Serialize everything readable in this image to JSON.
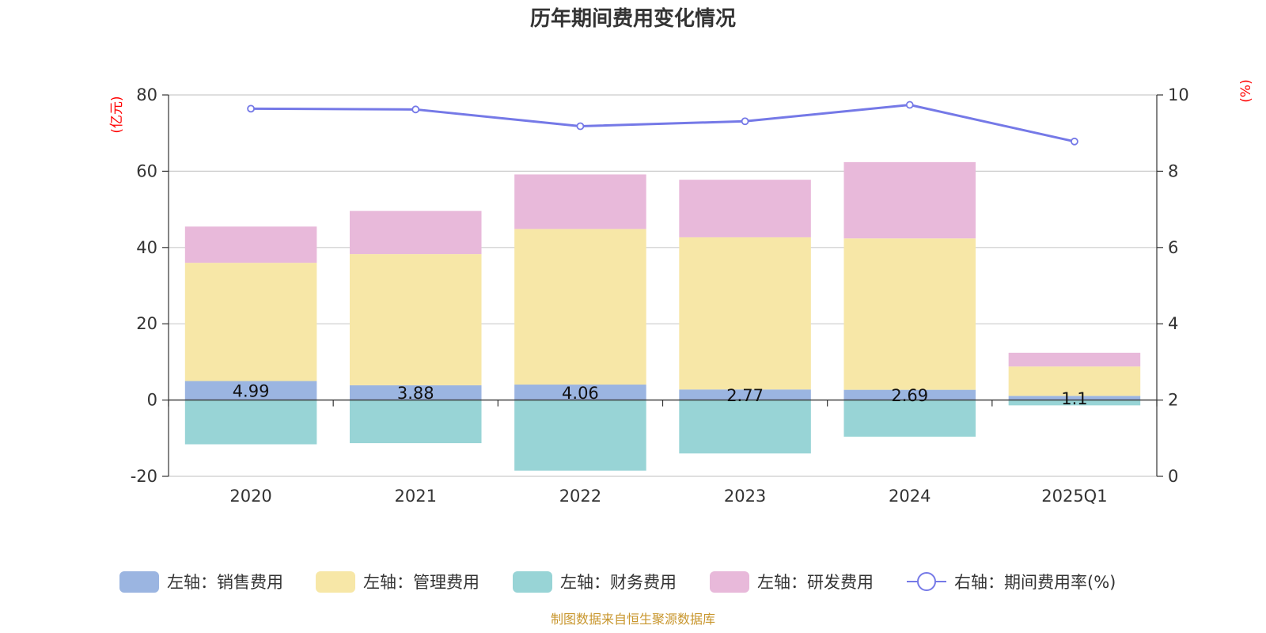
{
  "chart_data": {
    "type": "bar",
    "title": "历年期间费用变化情况",
    "categories": [
      "2020",
      "2021",
      "2022",
      "2023",
      "2024",
      "2025Q1"
    ],
    "left_axis": {
      "unit_label": "(亿元)",
      "ylim": [
        -20,
        80
      ],
      "ticks": [
        -20,
        0,
        20,
        40,
        60,
        80
      ]
    },
    "right_axis": {
      "unit_label": "(%)",
      "ylim": [
        0,
        10
      ],
      "ticks": [
        0,
        2,
        4,
        6,
        8,
        10
      ]
    },
    "grid": true,
    "legend_position": "bottom",
    "series": [
      {
        "name": "左轴：销售费用",
        "type": "bar",
        "stack": "total",
        "axis": "left",
        "color": "#9bb5e1",
        "values": [
          4.99,
          3.88,
          4.06,
          2.77,
          2.69,
          1.1
        ],
        "labels": [
          "4.99",
          "3.88",
          "4.06",
          "2.77",
          "2.69",
          "1.1"
        ]
      },
      {
        "name": "左轴：管理费用",
        "type": "bar",
        "stack": "total",
        "axis": "left",
        "color": "#f7e7a7",
        "values": [
          31.0,
          34.4,
          40.8,
          39.9,
          39.7,
          7.7
        ]
      },
      {
        "name": "左轴：财务费用",
        "type": "bar",
        "stack": "total",
        "axis": "left",
        "color": "#98d4d6",
        "values": [
          -11.6,
          -11.3,
          -18.5,
          -14.0,
          -9.6,
          -1.4
        ]
      },
      {
        "name": "左轴：研发费用",
        "type": "bar",
        "stack": "total",
        "axis": "left",
        "color": "#e8b9da",
        "values": [
          9.5,
          11.3,
          14.3,
          15.1,
          20.0,
          3.6
        ]
      },
      {
        "name": "右轴：期间费用率(%)",
        "type": "line",
        "axis": "right",
        "color": "#7579e7",
        "values": [
          9.64,
          9.62,
          9.18,
          9.31,
          9.74,
          8.78
        ]
      }
    ],
    "source": "制图数据来自恒生聚源数据库"
  }
}
